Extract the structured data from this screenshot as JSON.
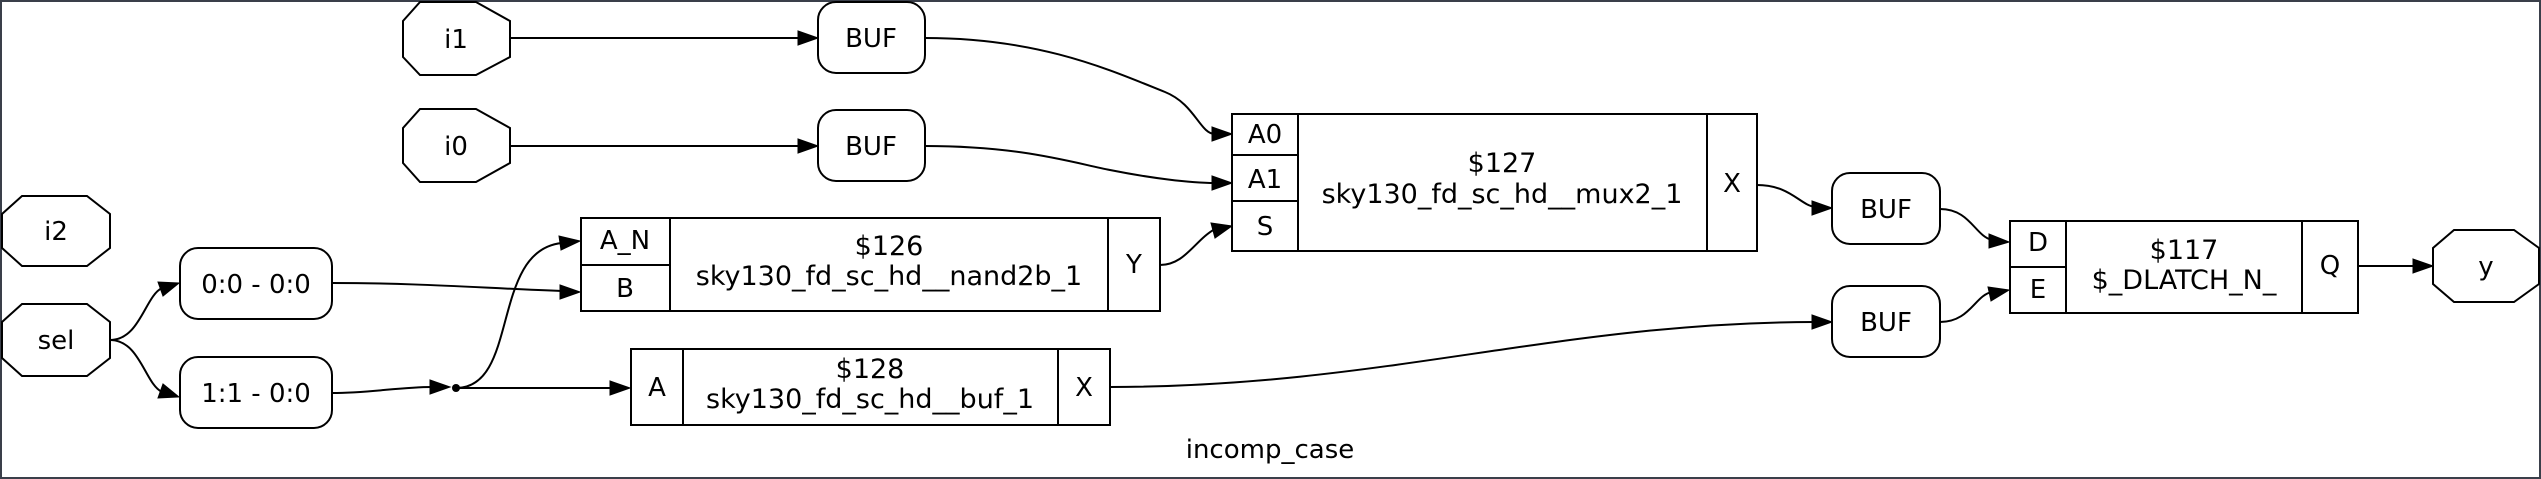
{
  "diagram": {
    "title": "incomp_case",
    "ports": {
      "i1": "i1",
      "i0": "i0",
      "i2": "i2",
      "sel": "sel",
      "y": "y"
    },
    "buffers": {
      "buf1": "BUF",
      "buf2": "BUF",
      "buf3": "BUF",
      "buf4": "BUF"
    },
    "slices": {
      "slice0": "0:0 - 0:0",
      "slice1": "1:1 - 0:0"
    },
    "cells": {
      "mux": {
        "id": "$127",
        "type": "sky130_fd_sc_hd__mux2_1",
        "pin_a0": "A0",
        "pin_a1": "A1",
        "pin_s": "S",
        "pin_x": "X"
      },
      "nand": {
        "id": "$126",
        "type": "sky130_fd_sc_hd__nand2b_1",
        "pin_an": "A_N",
        "pin_b": "B",
        "pin_y": "Y"
      },
      "buf": {
        "id": "$128",
        "type": "sky130_fd_sc_hd__buf_1",
        "pin_a": "A",
        "pin_x": "X"
      },
      "latch": {
        "id": "$117",
        "type": "$_DLATCH_N_",
        "pin_d": "D",
        "pin_e": "E",
        "pin_q": "Q"
      }
    }
  }
}
